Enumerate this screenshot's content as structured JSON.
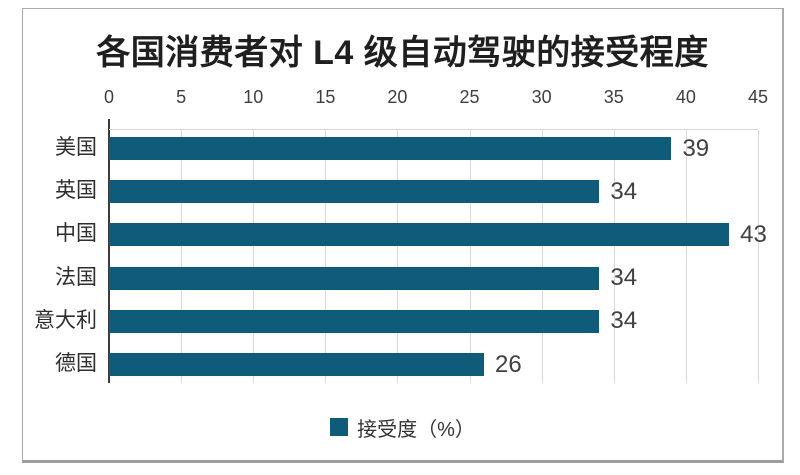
{
  "chart_data": {
    "type": "bar",
    "orientation": "horizontal",
    "title": "各国消费者对 L4 级自动驾驶的接受程度",
    "categories": [
      "美国",
      "英国",
      "中国",
      "法国",
      "意大利",
      "德国"
    ],
    "values": [
      39,
      34,
      43,
      34,
      34,
      26
    ],
    "xlim": [
      0,
      45
    ],
    "x_ticks": [
      0,
      5,
      10,
      15,
      20,
      25,
      30,
      35,
      40,
      45
    ],
    "grid": "vertical",
    "legend_position": "bottom",
    "legend_label": "接受度（%）",
    "bar_color": "#0e5c7a",
    "gridline_color": "#d9d9d9",
    "label_color": "#404040"
  }
}
